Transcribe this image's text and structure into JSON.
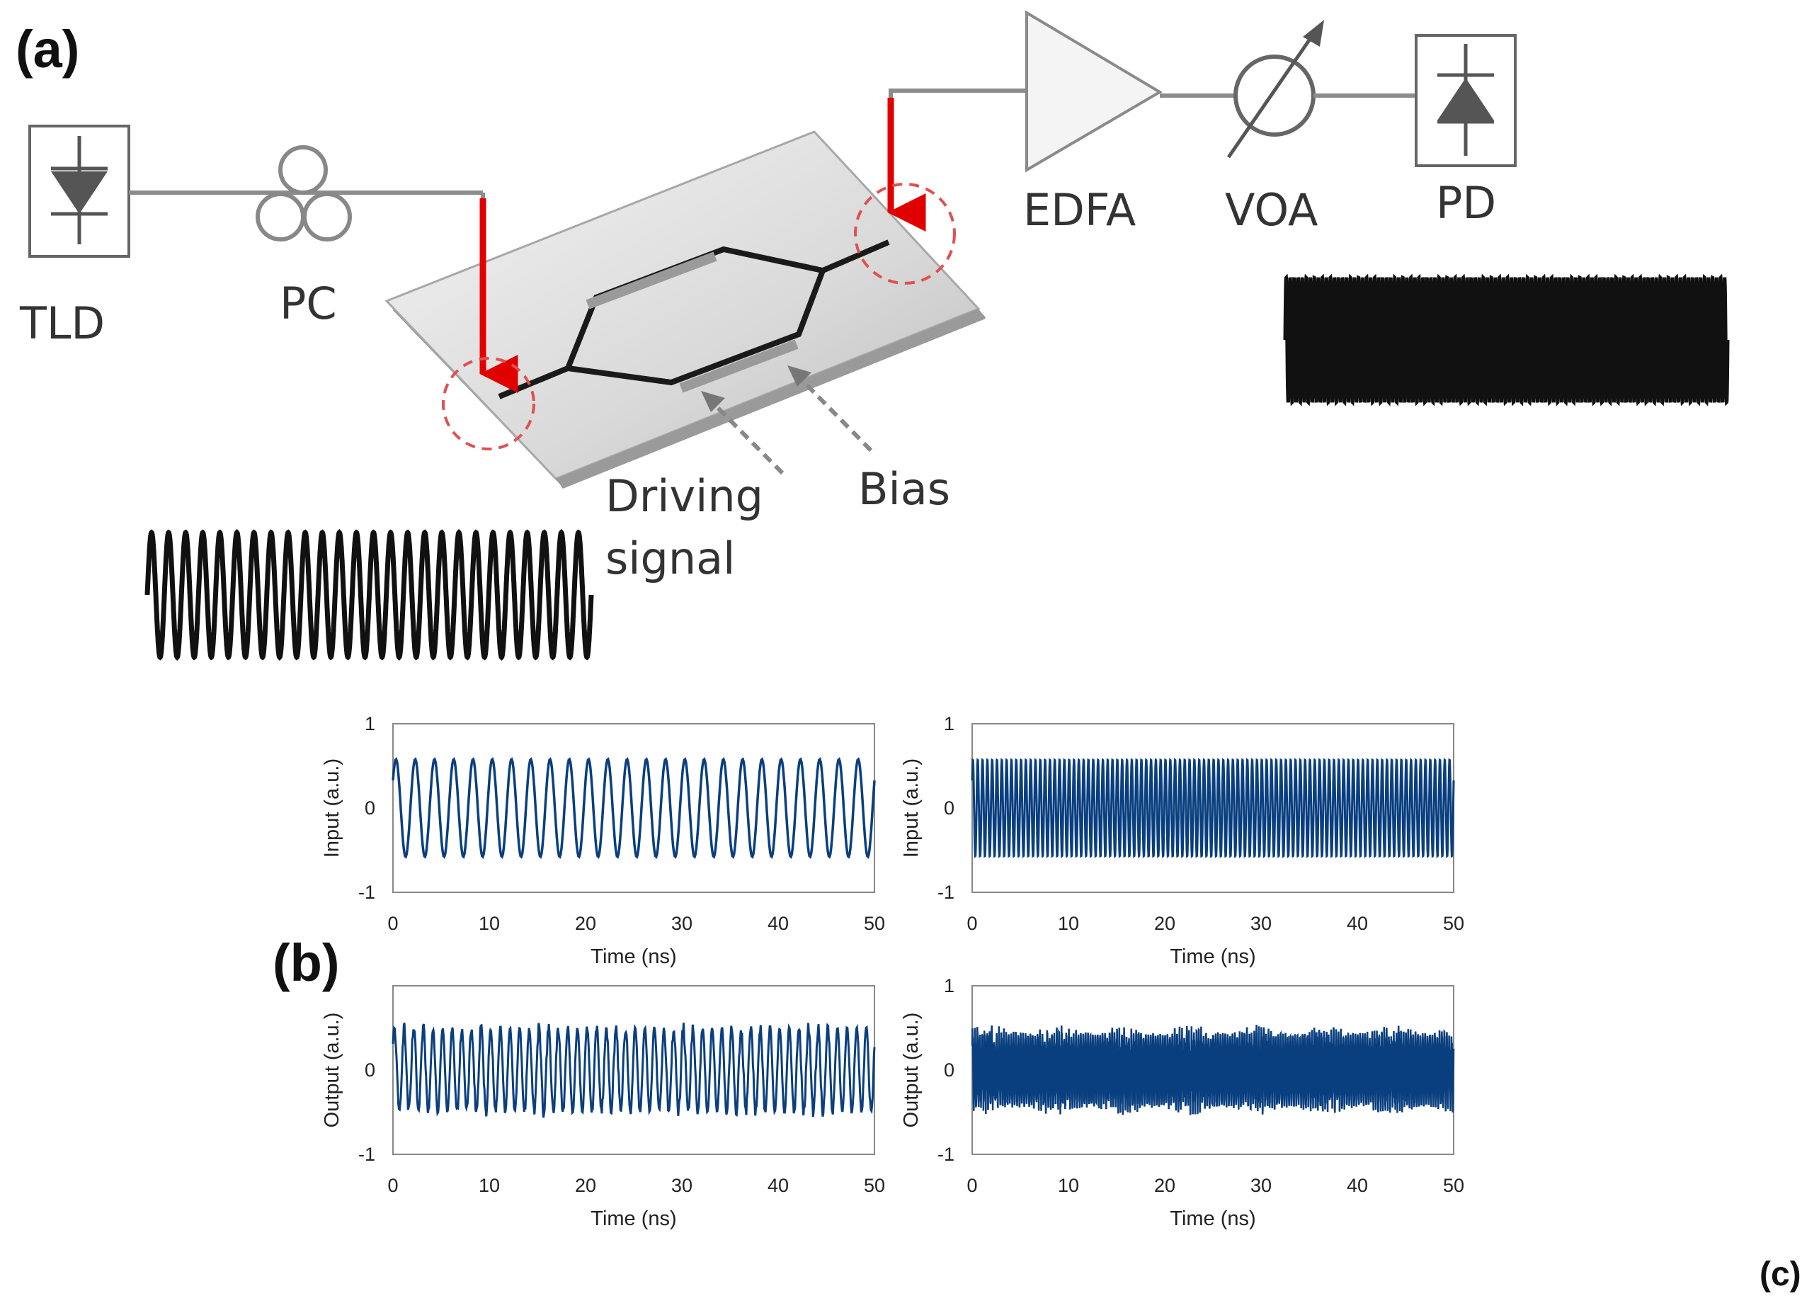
{
  "labels": {
    "panel_a": "(a)",
    "panel_b": "(b)",
    "panel_c": "(c)"
  },
  "components": {
    "tld": "TLD",
    "pc": "PC",
    "edfa": "EDFA",
    "voa": "VOA",
    "pd": "PD",
    "driving_line1": "Driving",
    "driving_line2": "signal",
    "bias": "Bias"
  },
  "colors": {
    "waveform": "#0a3f7f",
    "arrow": "#e00000",
    "circle": "#e05050",
    "fiber": "#8c8c8c",
    "ink": "#111111"
  },
  "chart_data": [
    {
      "type": "line",
      "position": "top-left",
      "ylabel": "Input (a.u.)",
      "xlabel": "Time (ns)",
      "xlim": [
        0,
        50
      ],
      "ylim": [
        -1,
        1
      ],
      "x_ticks": [
        "0",
        "10",
        "20",
        "30",
        "40",
        "50"
      ],
      "y_ticks": [
        "1",
        "0",
        "-1"
      ],
      "series": [
        {
          "name": "input",
          "amplitude": 0.58,
          "cycles": 25,
          "noise": 0
        }
      ]
    },
    {
      "type": "line",
      "position": "top-right",
      "ylabel": "Input (a.u.)",
      "xlabel": "Time (ns)",
      "xlim": [
        0,
        50
      ],
      "ylim": [
        -1,
        1
      ],
      "x_ticks": [
        "0",
        "10",
        "20",
        "30",
        "40",
        "50"
      ],
      "y_ticks": [
        "1",
        "0",
        "-1"
      ],
      "series": [
        {
          "name": "input",
          "amplitude": 0.58,
          "cycles": 100,
          "noise": 0
        }
      ]
    },
    {
      "type": "line",
      "position": "bottom-left",
      "ylabel": "Output (a.u.)",
      "xlabel": "Time (ns)",
      "xlim": [
        0,
        50
      ],
      "ylim": [
        -1,
        1
      ],
      "x_ticks": [
        "0",
        "10",
        "20",
        "30",
        "40",
        "50"
      ],
      "y_ticks": [
        "0",
        "-1"
      ],
      "series": [
        {
          "name": "output",
          "amplitude": 0.5,
          "cycles": 50,
          "noise": 0.05
        }
      ]
    },
    {
      "type": "line",
      "position": "bottom-right",
      "ylabel": "Output (a.u.)",
      "xlabel": "Time (ns)",
      "xlim": [
        0,
        50
      ],
      "ylim": [
        -1,
        1
      ],
      "x_ticks": [
        "0",
        "10",
        "20",
        "30",
        "40",
        "50"
      ],
      "y_ticks": [
        "1",
        "0",
        "-1"
      ],
      "series": [
        {
          "name": "output",
          "amplitude": 0.42,
          "cycles": 200,
          "noise": 0.08
        }
      ]
    }
  ]
}
